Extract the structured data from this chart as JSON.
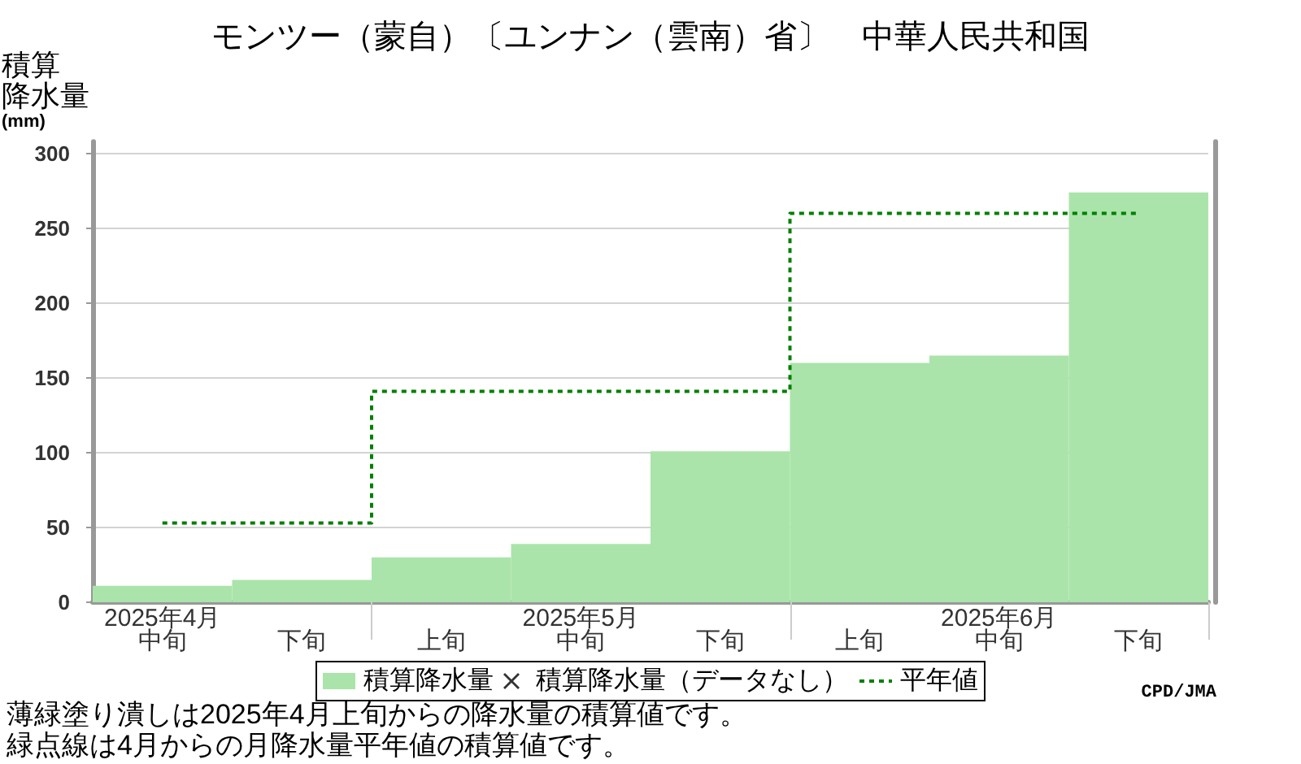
{
  "chart_data": {
    "type": "bar",
    "title": "モンツー（蒙自）〔ユンナン（雲南）省〕　中華人民共和国",
    "ylabel": "積算降水量(mm)",
    "categories": [
      "2025年4月中旬",
      "下旬",
      "上旬",
      "2025年5月中旬",
      "下旬",
      "上旬",
      "2025年6月中旬",
      "下旬"
    ],
    "series": [
      {
        "name": "積算降水量",
        "color": "#aae4aa",
        "values": [
          11,
          15,
          30,
          39,
          101,
          160,
          165,
          274
        ]
      },
      {
        "name": "積算降水量（データなし）",
        "type": "scatter",
        "marker": "cross",
        "color": "#000000",
        "values": [
          null,
          null,
          null,
          null,
          null,
          null,
          null,
          null
        ]
      },
      {
        "name": "平年値",
        "type": "step",
        "color": "#008000",
        "line_style": "dotted",
        "values": [
          53,
          53,
          141,
          141,
          141,
          260,
          260,
          260
        ]
      }
    ],
    "ylim": [
      0,
      308
    ],
    "yticks": [
      0,
      50,
      100,
      150,
      200,
      250,
      300
    ],
    "grid": "y",
    "legend": "bottom",
    "annotations": [
      "CPD/JMA",
      "薄緑塗り潰しは2025年4月上旬からの降水量の積算値です。",
      "緑点線は4月からの月降水量平年値の積算値です。"
    ]
  }
}
